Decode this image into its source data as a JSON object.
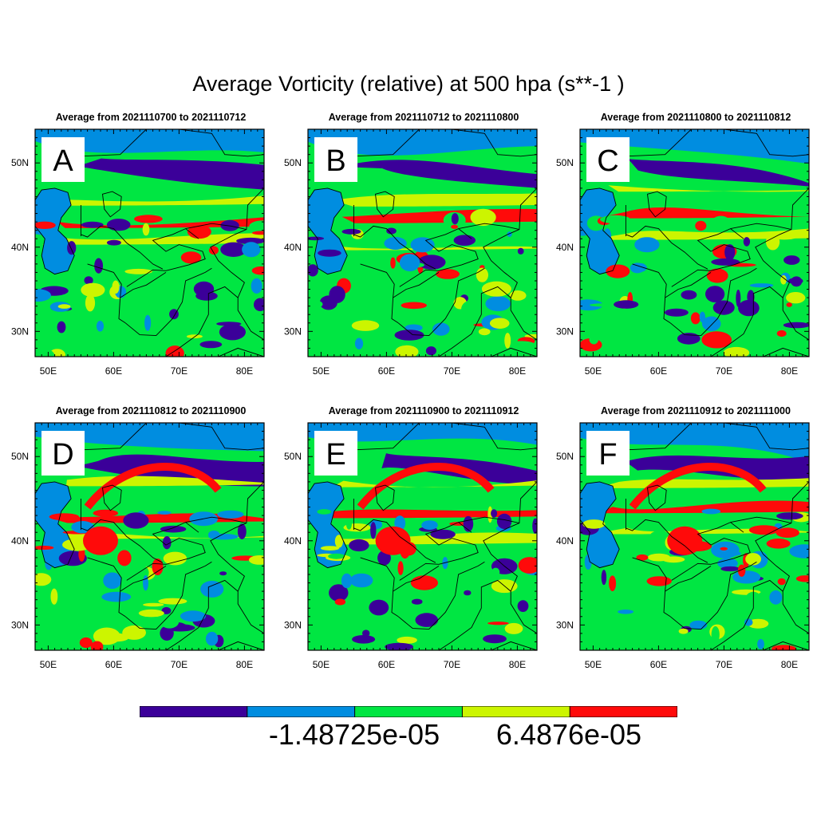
{
  "title": "Average Vorticity (relative) at 500 hpa (s**-1 )",
  "colors": {
    "level1": "#3b0099",
    "level2": "#008de0",
    "level3": "#00e642",
    "level4": "#ccf500",
    "level5": "#ff0a0a"
  },
  "chart_data": {
    "type": "heatmap",
    "title": "Average Vorticity (relative) at 500 hpa (s**-1 )",
    "xlabel": "",
    "ylabel": "",
    "x_ticks": [
      "50E",
      "60E",
      "70E",
      "80E"
    ],
    "y_ticks": [
      "30N",
      "40N",
      "50N"
    ],
    "xlim": [
      48,
      83
    ],
    "ylim": [
      27,
      54
    ],
    "colorbar": {
      "levels": 5,
      "colors": [
        "#3b0099",
        "#008de0",
        "#00e642",
        "#ccf500",
        "#ff0a0a"
      ],
      "tick_labels": [
        "-1.48725e-05",
        "6.4876e-05"
      ]
    },
    "panels": [
      {
        "label": "A",
        "subtitle": "Average from 2021110700 to 2021110712"
      },
      {
        "label": "B",
        "subtitle": "Average from 2021110712 to 2021110800"
      },
      {
        "label": "C",
        "subtitle": "Average from 2021110800 to 2021110812"
      },
      {
        "label": "D",
        "subtitle": "Average from 2021110812 to 2021110900"
      },
      {
        "label": "E",
        "subtitle": "Average from 2021110900 to 2021110912"
      },
      {
        "label": "F",
        "subtitle": "Average from 2021110912 to 2021111000"
      }
    ]
  }
}
